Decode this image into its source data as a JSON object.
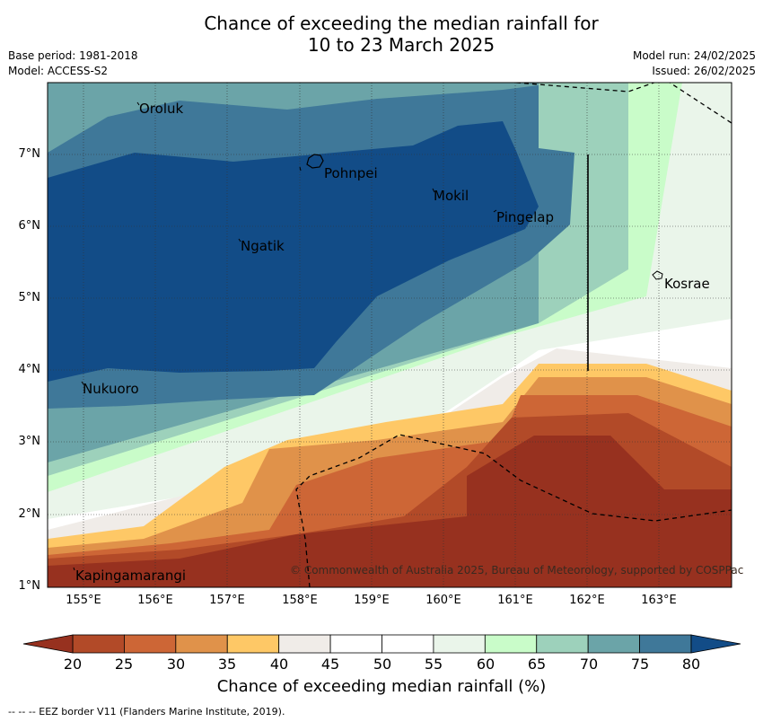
{
  "title_line1": "Chance of exceeding the median rainfall for",
  "title_line2": "10 to 23 March 2025",
  "meta": {
    "base_period": "Base period: 1981-2018",
    "model": "Model: ACCESS-S2",
    "model_run": "Model run: 24/02/2025",
    "issued": "Issued: 26/02/2025"
  },
  "axes": {
    "lat_labels": [
      "7°N",
      "6°N",
      "5°N",
      "4°N",
      "3°N",
      "2°N",
      "1°N"
    ],
    "lon_labels": [
      "155°E",
      "156°E",
      "157°E",
      "158°E",
      "159°E",
      "160°E",
      "161°E",
      "162°E",
      "163°E"
    ]
  },
  "places": {
    "oroluk": "Oroluk",
    "pohnpei": "Pohnpei",
    "mokil": "Mokil",
    "pingelap": "Pingelap",
    "ngatik": "Ngatik",
    "kosrae": "Kosrae",
    "nukuoro": "Nukuoro",
    "kapingamarangi": "Kapingamarangi"
  },
  "copyright": "© Commonwealth of Australia 2025, Bureau of Meteorology, supported by COSPPac",
  "colorbar": {
    "ticks": [
      "20",
      "25",
      "30",
      "35",
      "40",
      "45",
      "50",
      "55",
      "60",
      "65",
      "70",
      "75",
      "80"
    ],
    "colors": [
      "#b24a28",
      "#cd6636",
      "#e0924a",
      "#fec866",
      "#f0ece8",
      "#ffffff",
      "#ffffff",
      "#eaf5ea",
      "#c9fcc9",
      "#9dd1bb",
      "#6ba4a8",
      "#3f7899"
    ],
    "under_color": "#97311f",
    "over_color": "#124c87",
    "title": "Chance of exceeding median rainfall (%)"
  },
  "eez_note": "--  --  -- EEZ border V11 (Flanders Marine Institute, 2019)."
}
